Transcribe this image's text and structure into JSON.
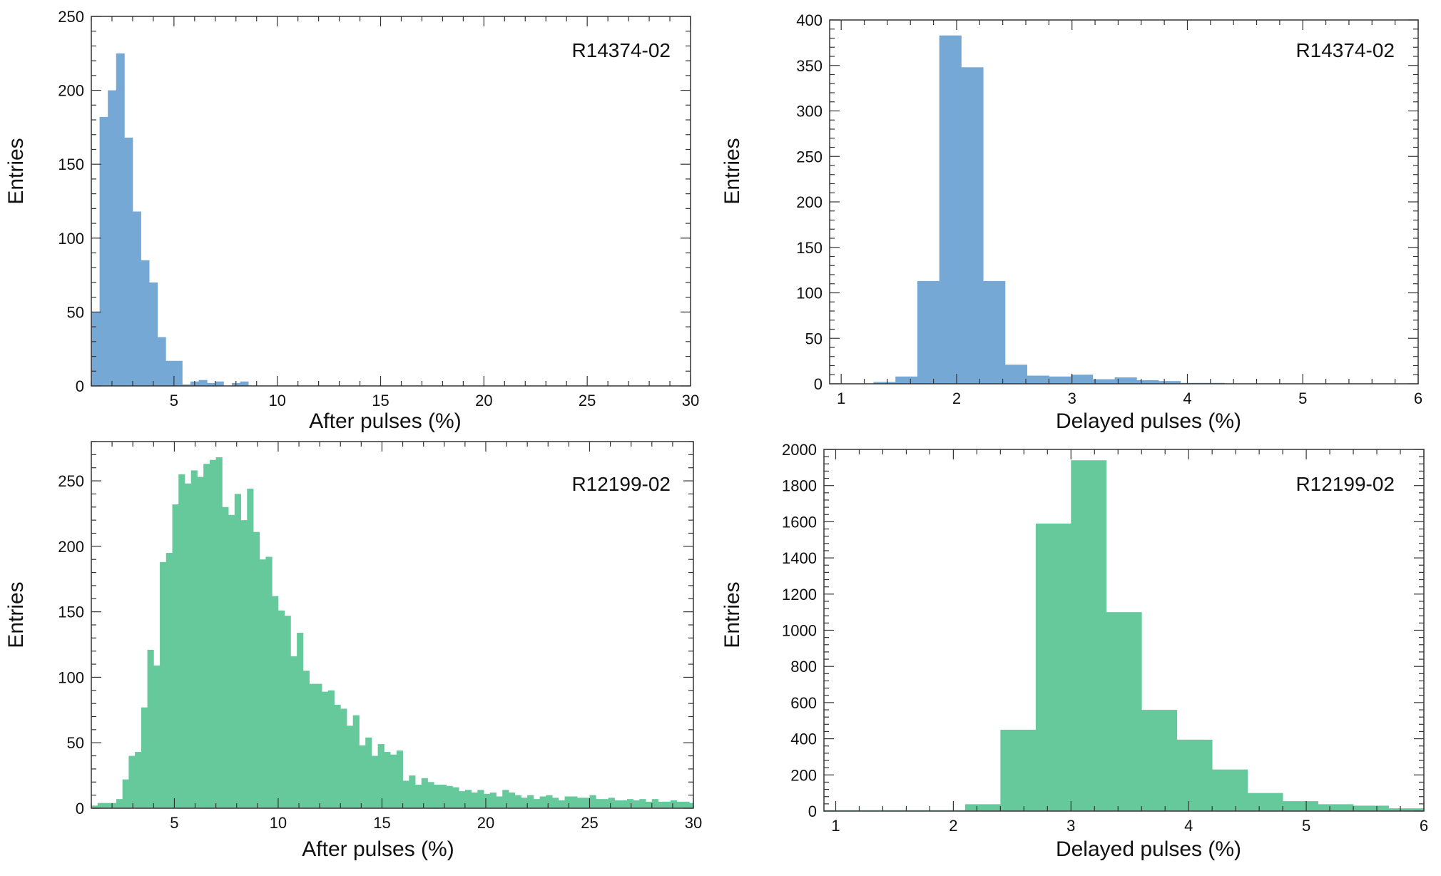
{
  "chart_data": [
    {
      "type": "bar",
      "histogram": true,
      "id": "top-left",
      "label": "R14374-02",
      "xlabel": "After pulses (%)",
      "ylabel": "Entries",
      "xlim": [
        1,
        30
      ],
      "ylim": [
        0,
        250
      ],
      "xticks": [
        5,
        10,
        15,
        20,
        25,
        30
      ],
      "yticks": [
        0,
        50,
        100,
        150,
        200,
        250
      ],
      "color": "#76A8D6",
      "bin_start": 1.0,
      "bin_width": 0.4,
      "values": [
        50,
        182,
        200,
        225,
        168,
        118,
        85,
        70,
        33,
        17,
        17,
        1,
        3,
        4,
        2,
        3,
        0,
        2,
        3
      ]
    },
    {
      "type": "bar",
      "histogram": true,
      "id": "top-right",
      "label": "R14374-02",
      "xlabel": "Delayed pulses (%)",
      "ylabel": "Entries",
      "xlim": [
        0.9,
        6
      ],
      "ylim": [
        0,
        400
      ],
      "xticks": [
        1,
        2,
        3,
        4,
        5,
        6
      ],
      "yticks": [
        0,
        50,
        100,
        150,
        200,
        250,
        300,
        350,
        400
      ],
      "color": "#76A8D6",
      "bin_start": 0.9,
      "bin_width": 0.19,
      "values": [
        0,
        0,
        2,
        8,
        113,
        383,
        348,
        113,
        21,
        9,
        8,
        10,
        5,
        7,
        4,
        3,
        1,
        1,
        0,
        0,
        0,
        0,
        0,
        0,
        0,
        0,
        0
      ]
    },
    {
      "type": "bar",
      "histogram": true,
      "id": "bottom-left",
      "label": "R12199-02",
      "xlabel": "After pulses (%)",
      "ylabel": "Entries",
      "xlim": [
        1,
        30
      ],
      "ylim": [
        0,
        280
      ],
      "xticks": [
        5,
        10,
        15,
        20,
        25,
        30
      ],
      "yticks": [
        0,
        50,
        100,
        150,
        200,
        250
      ],
      "color": "#66C99C",
      "bin_start": 1.0,
      "bin_width": 0.3,
      "values": [
        2,
        4,
        4,
        4,
        7,
        22,
        40,
        43,
        77,
        121,
        109,
        188,
        195,
        232,
        255,
        248,
        258,
        253,
        263,
        266,
        268,
        230,
        224,
        240,
        220,
        244,
        211,
        190,
        192,
        162,
        151,
        147,
        116,
        134,
        105,
        95,
        95,
        89,
        90,
        79,
        76,
        63,
        71,
        48,
        54,
        40,
        49,
        43,
        41,
        44,
        21,
        25,
        18,
        23,
        20,
        18,
        18,
        17,
        16,
        13,
        14,
        12,
        14,
        11,
        12,
        9,
        14,
        12,
        10,
        8,
        10,
        7,
        9,
        10,
        8,
        6,
        9,
        9,
        8,
        8,
        10,
        7,
        7,
        8,
        6,
        6,
        7,
        6,
        7,
        5,
        7,
        5,
        5,
        6,
        5,
        5,
        4
      ]
    },
    {
      "type": "bar",
      "histogram": true,
      "id": "bottom-right",
      "label": "R12199-02",
      "xlabel": "Delayed pulses (%)",
      "ylabel": "Entries",
      "xlim": [
        0.9,
        6
      ],
      "ylim": [
        0,
        2000
      ],
      "xticks": [
        1,
        2,
        3,
        4,
        5,
        6
      ],
      "yticks": [
        0,
        200,
        400,
        600,
        800,
        1000,
        1200,
        1400,
        1600,
        1800,
        2000
      ],
      "color": "#66C99C",
      "bin_start": 0.9,
      "bin_width": 0.3,
      "values": [
        5,
        5,
        5,
        5,
        38,
        450,
        1590,
        1940,
        1100,
        560,
        395,
        230,
        100,
        55,
        38,
        30,
        15
      ]
    }
  ]
}
